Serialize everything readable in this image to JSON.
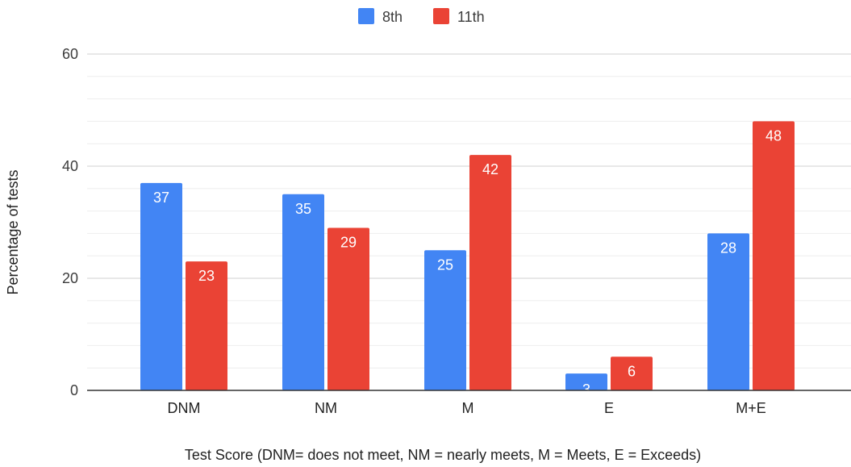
{
  "chart_data": {
    "type": "bar",
    "categories": [
      "DNM",
      "NM",
      "M",
      "E",
      "M+E"
    ],
    "series": [
      {
        "name": "8th",
        "color": "#4285f4",
        "values": [
          37,
          35,
          25,
          3,
          28
        ]
      },
      {
        "name": "11th",
        "color": "#ea4335",
        "values": [
          23,
          29,
          42,
          6,
          48
        ]
      }
    ],
    "xlabel": "Test Score (DNM= does not meet, NM = nearly meets, M = Meets, E = Exceeds)",
    "ylabel": "Percentage of tests",
    "ylim": [
      0,
      60
    ],
    "yticks": [
      0,
      20,
      40,
      60
    ],
    "grid": true,
    "legend_position": "top-center",
    "data_labels": true
  }
}
